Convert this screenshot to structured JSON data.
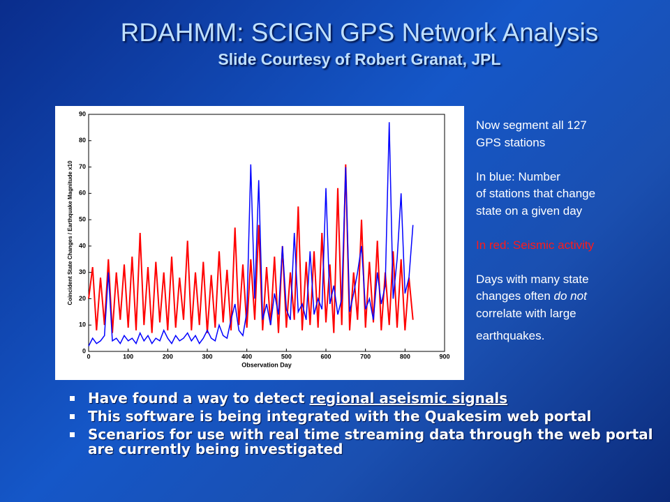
{
  "title": "RDAHMM: SCIGN GPS Network Analysis",
  "subtitle": "Slide Courtesy of Robert Granat, JPL",
  "chart_data": {
    "type": "line",
    "xlabel": "Observation Day",
    "ylabel": "Coincident State Changes / Earthquake Magnitude x10",
    "xlim": [
      0,
      900
    ],
    "xticks": [
      0,
      100,
      200,
      300,
      400,
      500,
      600,
      700,
      800,
      900
    ],
    "ylim": [
      0,
      90
    ],
    "yticks": [
      0,
      10,
      20,
      30,
      40,
      50,
      60,
      70,
      80,
      90
    ],
    "x": [
      0,
      10,
      20,
      30,
      40,
      50,
      60,
      70,
      80,
      90,
      100,
      110,
      120,
      130,
      140,
      150,
      160,
      170,
      180,
      190,
      200,
      210,
      220,
      230,
      240,
      250,
      260,
      270,
      280,
      290,
      300,
      310,
      320,
      330,
      340,
      350,
      360,
      370,
      380,
      390,
      400,
      410,
      420,
      430,
      440,
      450,
      460,
      470,
      480,
      490,
      500,
      510,
      520,
      530,
      540,
      550,
      560,
      570,
      580,
      590,
      600,
      610,
      620,
      630,
      640,
      650,
      660,
      670,
      680,
      690,
      700,
      710,
      720,
      730,
      740,
      750,
      760,
      770,
      780,
      790,
      800,
      810,
      820
    ],
    "series": [
      {
        "color": "#ff0000",
        "values": [
          20,
          32,
          8,
          28,
          10,
          35,
          7,
          30,
          12,
          33,
          9,
          36,
          8,
          45,
          10,
          32,
          7,
          34,
          11,
          30,
          8,
          36,
          9,
          28,
          12,
          42,
          8,
          30,
          10,
          34,
          7,
          29,
          9,
          38,
          11,
          31,
          8,
          47,
          10,
          33,
          9,
          35,
          12,
          48,
          8,
          32,
          10,
          36,
          7,
          40,
          9,
          30,
          12,
          55,
          8,
          34,
          10,
          38,
          9,
          45,
          11,
          33,
          7,
          62,
          10,
          71,
          8,
          30,
          12,
          50,
          9,
          34,
          11,
          42,
          8,
          30,
          10,
          38,
          9,
          35,
          8,
          28,
          12
        ]
      },
      {
        "color": "#0000ff",
        "values": [
          2,
          5,
          3,
          4,
          6,
          30,
          4,
          5,
          3,
          6,
          4,
          5,
          3,
          7,
          4,
          6,
          3,
          5,
          4,
          8,
          5,
          3,
          6,
          4,
          5,
          7,
          4,
          6,
          3,
          5,
          8,
          5,
          4,
          10,
          6,
          5,
          12,
          18,
          8,
          6,
          15,
          71,
          20,
          65,
          12,
          18,
          10,
          22,
          14,
          40,
          16,
          12,
          45,
          15,
          18,
          12,
          38,
          14,
          20,
          16,
          62,
          18,
          25,
          14,
          20,
          70,
          15,
          22,
          30,
          40,
          16,
          20,
          12,
          30,
          18,
          25,
          87,
          20,
          35,
          60,
          22,
          28,
          48
        ]
      }
    ]
  },
  "notes": [
    [
      "Now segment all 127",
      "GPS stations"
    ],
    [
      "In blue: Number",
      "of stations that change",
      "state on a given day"
    ],
    [
      "In red: Seismic activity"
    ],
    [
      "Days with many state",
      "changes often ",
      "do not",
      "correlate with large",
      "earthquakes."
    ]
  ],
  "bullets": [
    [
      "Have found a way to detect ",
      "regional aseismic signals"
    ],
    "This software is being integrated with the Quakesim web portal",
    "Scenarios for use with real time streaming data through the web portal are currently being investigated"
  ]
}
